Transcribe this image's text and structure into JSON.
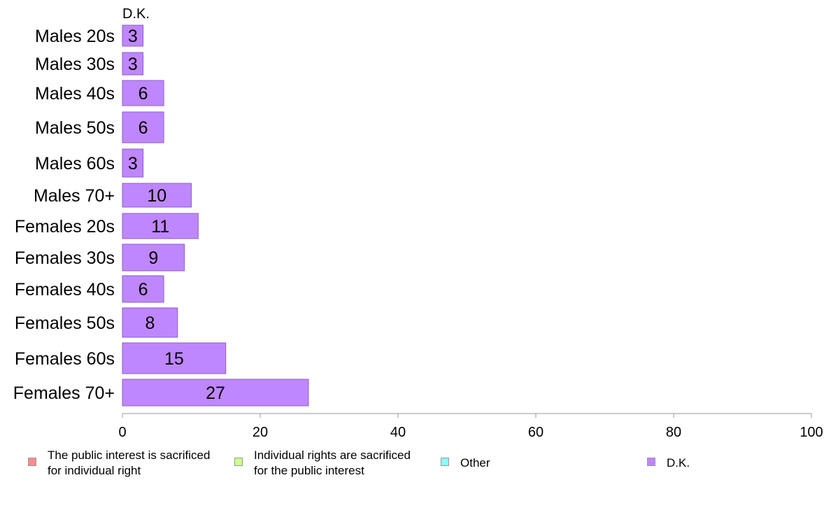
{
  "chart_data": {
    "type": "bar",
    "orientation": "horizontal",
    "panel_title": "D.K.",
    "categories": [
      "Males 20s",
      "Males 30s",
      "Males 40s",
      "Males 50s",
      "Males 60s",
      "Males 70+",
      "Females 20s",
      "Females 30s",
      "Females 40s",
      "Females 50s",
      "Females 60s",
      "Females 70+"
    ],
    "series": [
      {
        "name": "D.K.",
        "values": [
          3,
          3,
          6,
          6,
          3,
          10,
          11,
          9,
          6,
          8,
          15,
          27
        ],
        "color": "#bf87ff"
      }
    ],
    "xlim": [
      0,
      100
    ],
    "xticks": [
      0,
      20,
      40,
      60,
      80,
      100
    ],
    "grid": false,
    "legend_placement": "bottom"
  },
  "legend": [
    {
      "label": "The public interest is sacrificed\nfor individual right",
      "color": "#ff8c8c"
    },
    {
      "label": "Individual rights are sacrificed\nfor the public interest",
      "color": "#ccff8c"
    },
    {
      "label": "Other",
      "color": "#8cffff"
    },
    {
      "label": "D.K.",
      "color": "#bf87ff"
    }
  ]
}
